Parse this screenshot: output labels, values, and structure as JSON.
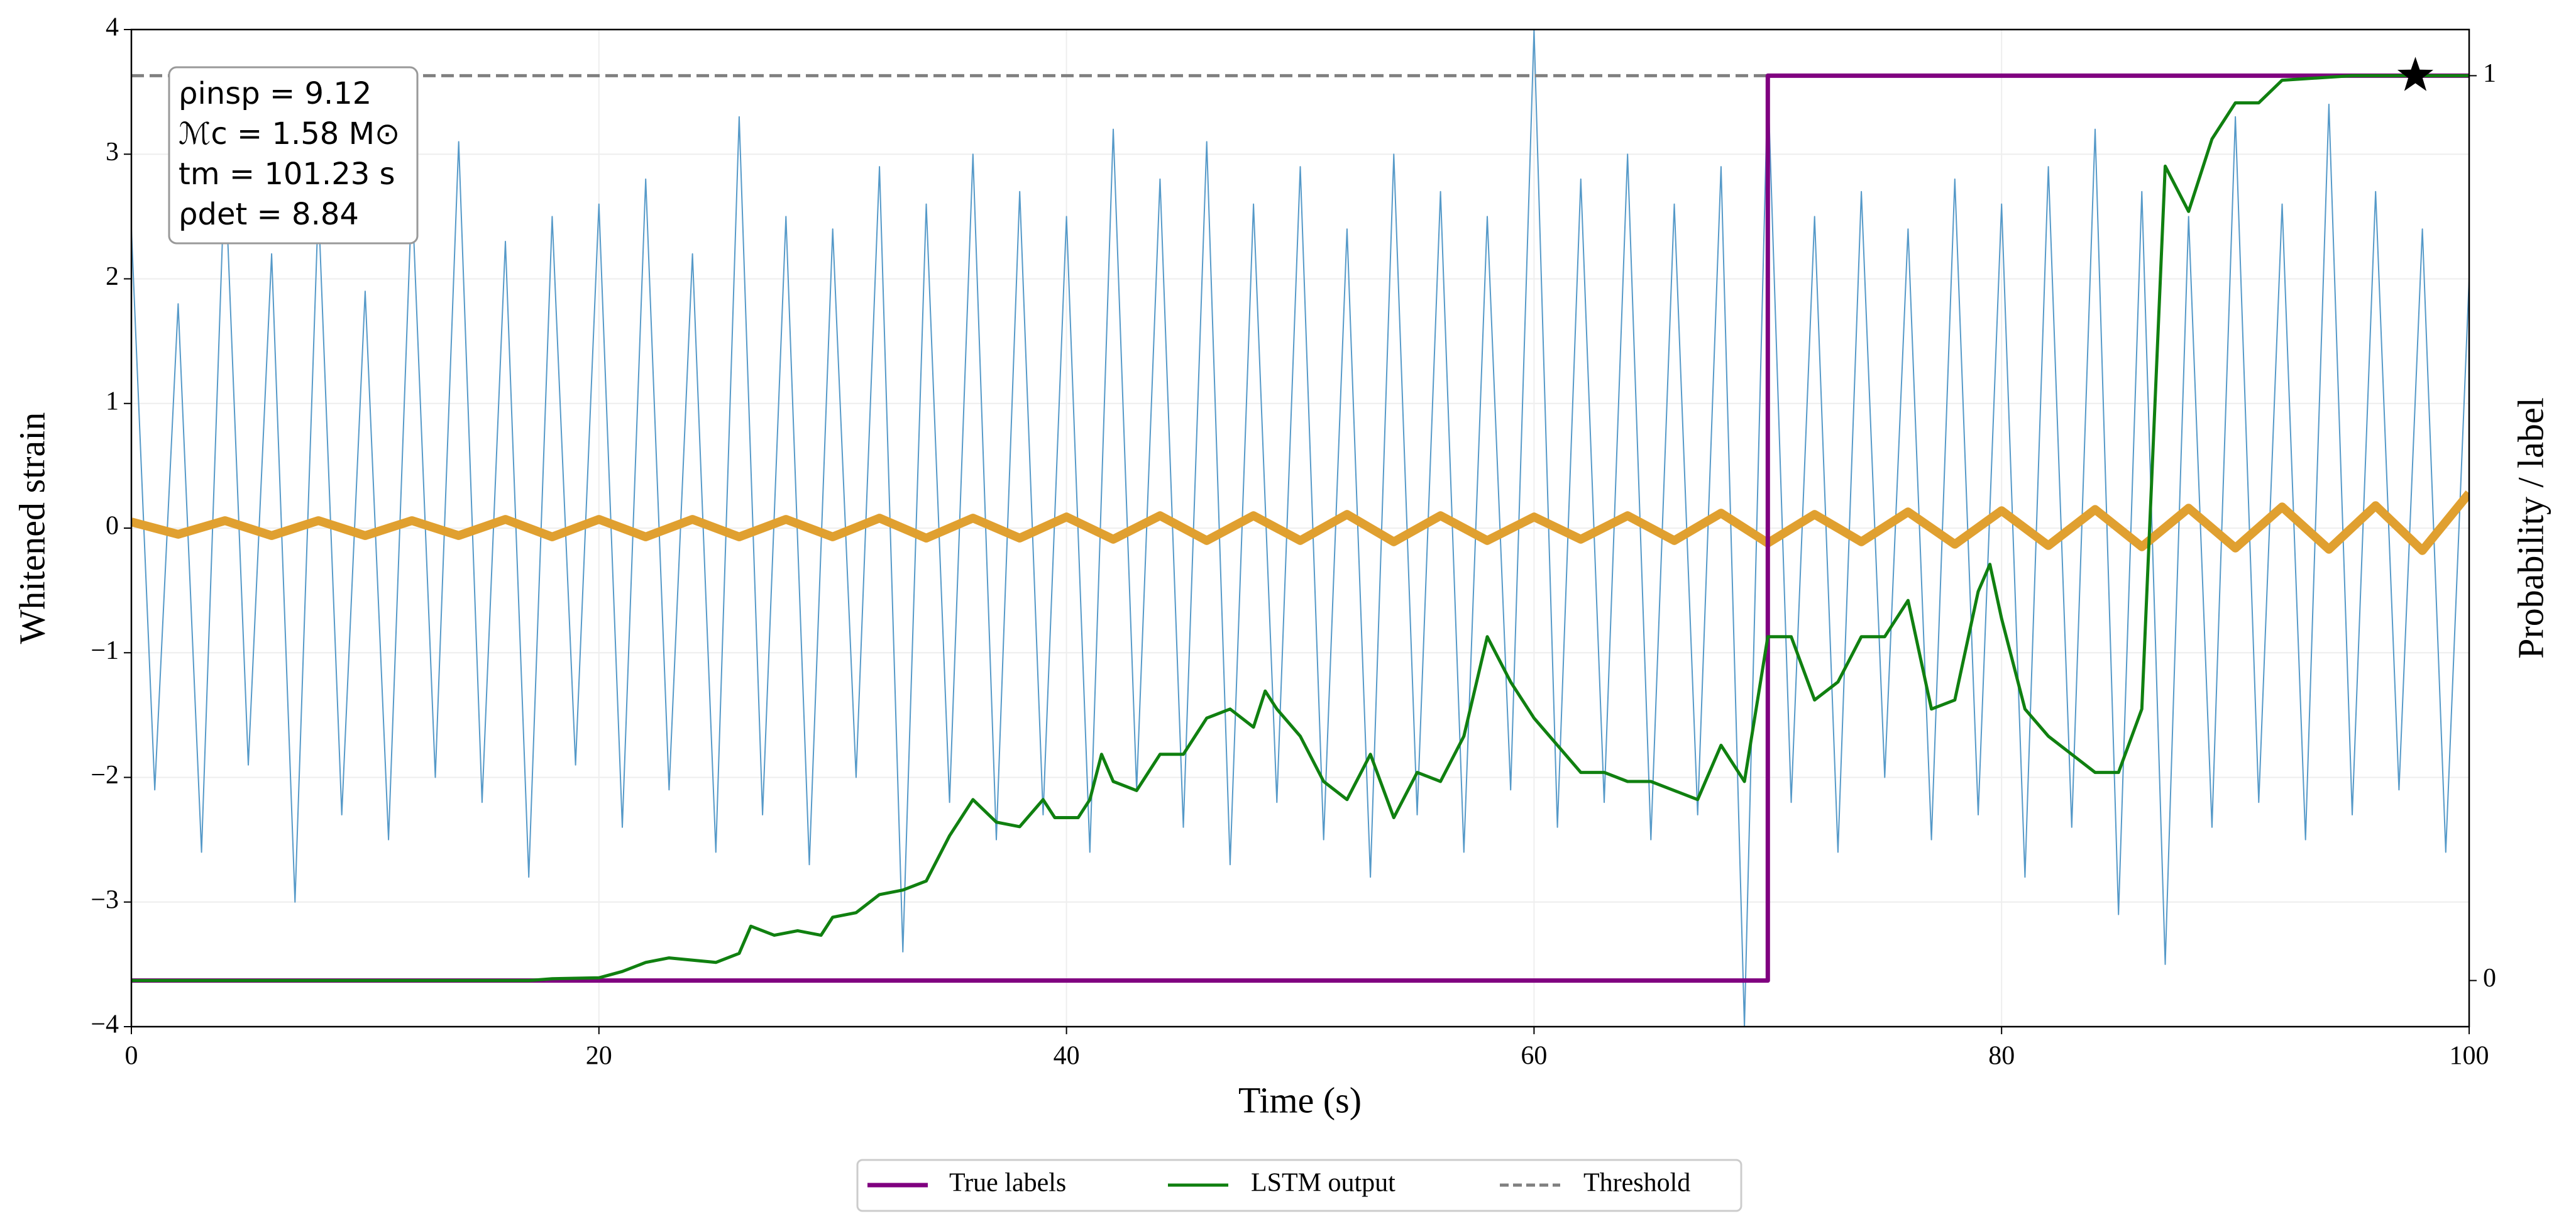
{
  "chart_data": {
    "type": "line",
    "xlabel": "Time (s)",
    "ylabel": "Whitened strain",
    "y2label": "Probability / label",
    "xlim": [
      0,
      100
    ],
    "xticks": [
      0,
      20,
      40,
      60,
      80,
      100
    ],
    "ylim": [
      -4,
      4
    ],
    "yticks": [
      {
        "value": -4,
        "label": "−4"
      },
      {
        "value": -3,
        "label": "−3"
      },
      {
        "value": -2,
        "label": "−2"
      },
      {
        "value": -1,
        "label": "−1"
      },
      0,
      1,
      2,
      3,
      4
    ],
    "y2lim": [
      -0.051,
      1.051
    ],
    "y2ticks": [
      0,
      1
    ],
    "grid": true,
    "legend": "bottom",
    "annotations": [
      "ρinsp = 9.12",
      "ℳc = 1.58 M⊙",
      "tm = 101.23 s",
      "ρdet = 8.84"
    ],
    "series": [
      {
        "color": "#5599c8",
        "width": 2,
        "x": [
          0,
          1,
          2,
          3,
          4,
          5,
          6,
          7,
          8,
          9,
          10,
          11,
          12,
          13,
          14,
          15,
          16,
          17,
          18,
          19,
          20,
          21,
          22,
          23,
          24,
          25,
          26,
          27,
          28,
          29,
          30,
          31,
          32,
          33,
          34,
          35,
          36,
          37,
          38,
          39,
          40,
          41,
          42,
          43,
          44,
          45,
          46,
          47,
          48,
          49,
          50,
          51,
          52,
          53,
          54,
          55,
          56,
          57,
          58,
          59,
          60,
          61,
          62,
          63,
          64,
          65,
          66,
          67,
          68,
          69,
          70,
          71,
          72,
          73,
          74,
          75,
          76,
          77,
          78,
          79,
          80,
          81,
          82,
          83,
          84,
          85,
          86,
          87,
          88,
          89,
          90,
          91,
          92,
          93,
          94,
          95,
          96,
          97,
          98,
          99,
          100
        ],
        "values": [
          2.4,
          -2.1,
          1.8,
          -2.6,
          2.9,
          -1.9,
          2.2,
          -3.0,
          2.6,
          -2.3,
          1.9,
          -2.5,
          2.7,
          -2.0,
          3.1,
          -2.2,
          2.3,
          -2.8,
          2.5,
          -1.9,
          2.6,
          -2.4,
          2.8,
          -2.1,
          2.2,
          -2.6,
          3.3,
          -2.3,
          2.5,
          -2.7,
          2.4,
          -2.0,
          2.9,
          -3.4,
          2.6,
          -2.2,
          3.0,
          -2.5,
          2.7,
          -2.3,
          2.5,
          -2.6,
          3.2,
          -2.1,
          2.8,
          -2.4,
          3.1,
          -2.7,
          2.6,
          -2.2,
          2.9,
          -2.5,
          2.4,
          -2.8,
          3.0,
          -2.3,
          2.7,
          -2.6,
          2.5,
          -2.1,
          4.0,
          -2.4,
          2.8,
          -2.2,
          3.0,
          -2.5,
          2.6,
          -2.3,
          2.9,
          -4.0,
          3.6,
          -2.2,
          2.5,
          -2.6,
          2.7,
          -2.0,
          2.4,
          -2.5,
          2.8,
          -2.3,
          2.6,
          -2.8,
          2.9,
          -2.4,
          3.2,
          -3.1,
          2.7,
          -3.5,
          2.5,
          -2.4,
          3.3,
          -2.2,
          2.6,
          -2.5,
          3.4,
          -2.3,
          2.7,
          -2.1,
          2.4,
          -2.6,
          2.0
        ]
      },
      {
        "color": "#e0a030",
        "width": 14,
        "x": [
          0,
          2,
          4,
          6,
          8,
          10,
          12,
          14,
          16,
          18,
          20,
          22,
          24,
          26,
          28,
          30,
          32,
          34,
          36,
          38,
          40,
          42,
          44,
          46,
          48,
          50,
          52,
          54,
          56,
          58,
          60,
          62,
          64,
          66,
          68,
          70,
          72,
          74,
          76,
          78,
          80,
          82,
          84,
          86,
          88,
          90,
          92,
          94,
          96,
          98,
          100
        ],
        "values": [
          0.05,
          -0.05,
          0.06,
          -0.06,
          0.06,
          -0.06,
          0.06,
          -0.06,
          0.07,
          -0.07,
          0.07,
          -0.07,
          0.07,
          -0.07,
          0.07,
          -0.07,
          0.08,
          -0.08,
          0.08,
          -0.08,
          0.09,
          -0.09,
          0.1,
          -0.1,
          0.1,
          -0.1,
          0.11,
          -0.11,
          0.1,
          -0.1,
          0.09,
          -0.09,
          0.1,
          -0.1,
          0.12,
          -0.12,
          0.11,
          -0.11,
          0.13,
          -0.13,
          0.14,
          -0.14,
          0.15,
          -0.15,
          0.16,
          -0.16,
          0.17,
          -0.17,
          0.18,
          -0.18,
          0.28
        ]
      },
      {
        "name": "True labels",
        "color": "#800080",
        "width": 7,
        "axis": "y2",
        "x": [
          0,
          70,
          70,
          100
        ],
        "values": [
          0,
          0,
          1,
          1
        ]
      },
      {
        "name": "LSTM output",
        "color": "#108010",
        "width": 5,
        "axis": "y2",
        "x": [
          0,
          5,
          10,
          15,
          17,
          18,
          20,
          21,
          22,
          23,
          25,
          26,
          26.5,
          27.5,
          28.5,
          29.5,
          30,
          31,
          32,
          33,
          34,
          35,
          36,
          37,
          38,
          39,
          39.5,
          40.5,
          41,
          41.5,
          42,
          43,
          44,
          45,
          46,
          47,
          48,
          48.5,
          49,
          50,
          51,
          52,
          53,
          54,
          55,
          56,
          57,
          58,
          59,
          60,
          61,
          62,
          63,
          64,
          65,
          66,
          67,
          68,
          69,
          70,
          71,
          72,
          73,
          74,
          75,
          76,
          77,
          78,
          79,
          79.5,
          80,
          81,
          82,
          83,
          84,
          85,
          86,
          86.5,
          87,
          88,
          89,
          90,
          91,
          92,
          95,
          100
        ],
        "values": [
          0,
          0,
          0,
          0,
          0,
          0.002,
          0.003,
          0.01,
          0.02,
          0.025,
          0.02,
          0.03,
          0.06,
          0.05,
          0.055,
          0.05,
          0.07,
          0.075,
          0.095,
          0.1,
          0.11,
          0.16,
          0.2,
          0.175,
          0.17,
          0.2,
          0.18,
          0.18,
          0.2,
          0.25,
          0.22,
          0.21,
          0.25,
          0.25,
          0.29,
          0.3,
          0.28,
          0.32,
          0.3,
          0.27,
          0.22,
          0.2,
          0.25,
          0.18,
          0.23,
          0.22,
          0.27,
          0.38,
          0.33,
          0.29,
          0.26,
          0.23,
          0.23,
          0.22,
          0.22,
          0.21,
          0.2,
          0.26,
          0.22,
          0.38,
          0.38,
          0.31,
          0.33,
          0.38,
          0.38,
          0.42,
          0.3,
          0.31,
          0.43,
          0.46,
          0.4,
          0.3,
          0.27,
          0.25,
          0.23,
          0.23,
          0.3,
          0.6,
          0.9,
          0.85,
          0.93,
          0.97,
          0.97,
          0.995,
          1,
          1
        ]
      }
    ],
    "threshold": {
      "name": "Threshold",
      "value": 1,
      "color": "#808080"
    },
    "marker": {
      "x": 97.7,
      "value": 1,
      "color": "#000000"
    }
  }
}
